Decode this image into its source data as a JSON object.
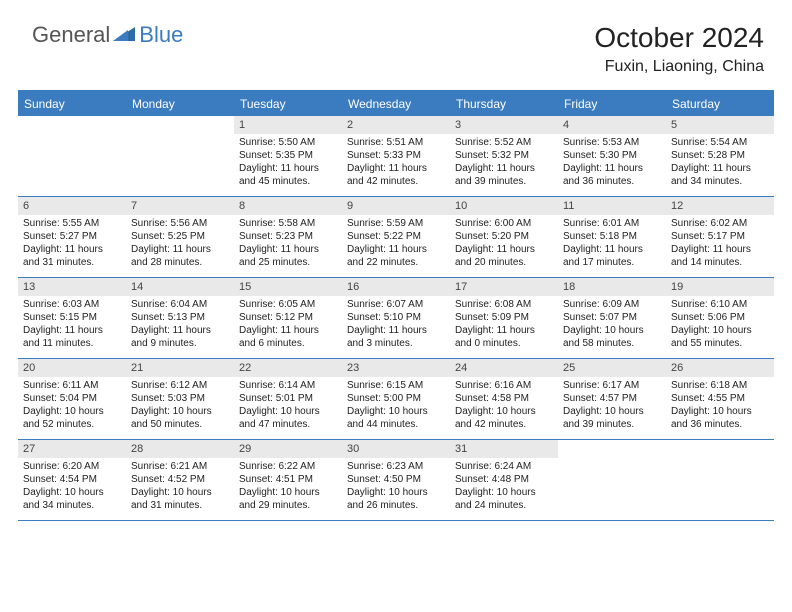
{
  "logo": {
    "text1": "General",
    "text2": "Blue"
  },
  "title": "October 2024",
  "location": "Fuxin, Liaoning, China",
  "colors": {
    "header_bg": "#3b7bbf",
    "daynum_bg": "#e9e9e9",
    "page_bg": "#ffffff",
    "text": "#222222",
    "logo_gray": "#555555",
    "logo_blue": "#3b7bbf"
  },
  "day_headers": [
    "Sunday",
    "Monday",
    "Tuesday",
    "Wednesday",
    "Thursday",
    "Friday",
    "Saturday"
  ],
  "weeks": [
    [
      {
        "num": "",
        "sunrise": "",
        "sunset": "",
        "day1": "",
        "day2": ""
      },
      {
        "num": "",
        "sunrise": "",
        "sunset": "",
        "day1": "",
        "day2": ""
      },
      {
        "num": "1",
        "sunrise": "Sunrise: 5:50 AM",
        "sunset": "Sunset: 5:35 PM",
        "day1": "Daylight: 11 hours",
        "day2": "and 45 minutes."
      },
      {
        "num": "2",
        "sunrise": "Sunrise: 5:51 AM",
        "sunset": "Sunset: 5:33 PM",
        "day1": "Daylight: 11 hours",
        "day2": "and 42 minutes."
      },
      {
        "num": "3",
        "sunrise": "Sunrise: 5:52 AM",
        "sunset": "Sunset: 5:32 PM",
        "day1": "Daylight: 11 hours",
        "day2": "and 39 minutes."
      },
      {
        "num": "4",
        "sunrise": "Sunrise: 5:53 AM",
        "sunset": "Sunset: 5:30 PM",
        "day1": "Daylight: 11 hours",
        "day2": "and 36 minutes."
      },
      {
        "num": "5",
        "sunrise": "Sunrise: 5:54 AM",
        "sunset": "Sunset: 5:28 PM",
        "day1": "Daylight: 11 hours",
        "day2": "and 34 minutes."
      }
    ],
    [
      {
        "num": "6",
        "sunrise": "Sunrise: 5:55 AM",
        "sunset": "Sunset: 5:27 PM",
        "day1": "Daylight: 11 hours",
        "day2": "and 31 minutes."
      },
      {
        "num": "7",
        "sunrise": "Sunrise: 5:56 AM",
        "sunset": "Sunset: 5:25 PM",
        "day1": "Daylight: 11 hours",
        "day2": "and 28 minutes."
      },
      {
        "num": "8",
        "sunrise": "Sunrise: 5:58 AM",
        "sunset": "Sunset: 5:23 PM",
        "day1": "Daylight: 11 hours",
        "day2": "and 25 minutes."
      },
      {
        "num": "9",
        "sunrise": "Sunrise: 5:59 AM",
        "sunset": "Sunset: 5:22 PM",
        "day1": "Daylight: 11 hours",
        "day2": "and 22 minutes."
      },
      {
        "num": "10",
        "sunrise": "Sunrise: 6:00 AM",
        "sunset": "Sunset: 5:20 PM",
        "day1": "Daylight: 11 hours",
        "day2": "and 20 minutes."
      },
      {
        "num": "11",
        "sunrise": "Sunrise: 6:01 AM",
        "sunset": "Sunset: 5:18 PM",
        "day1": "Daylight: 11 hours",
        "day2": "and 17 minutes."
      },
      {
        "num": "12",
        "sunrise": "Sunrise: 6:02 AM",
        "sunset": "Sunset: 5:17 PM",
        "day1": "Daylight: 11 hours",
        "day2": "and 14 minutes."
      }
    ],
    [
      {
        "num": "13",
        "sunrise": "Sunrise: 6:03 AM",
        "sunset": "Sunset: 5:15 PM",
        "day1": "Daylight: 11 hours",
        "day2": "and 11 minutes."
      },
      {
        "num": "14",
        "sunrise": "Sunrise: 6:04 AM",
        "sunset": "Sunset: 5:13 PM",
        "day1": "Daylight: 11 hours",
        "day2": "and 9 minutes."
      },
      {
        "num": "15",
        "sunrise": "Sunrise: 6:05 AM",
        "sunset": "Sunset: 5:12 PM",
        "day1": "Daylight: 11 hours",
        "day2": "and 6 minutes."
      },
      {
        "num": "16",
        "sunrise": "Sunrise: 6:07 AM",
        "sunset": "Sunset: 5:10 PM",
        "day1": "Daylight: 11 hours",
        "day2": "and 3 minutes."
      },
      {
        "num": "17",
        "sunrise": "Sunrise: 6:08 AM",
        "sunset": "Sunset: 5:09 PM",
        "day1": "Daylight: 11 hours",
        "day2": "and 0 minutes."
      },
      {
        "num": "18",
        "sunrise": "Sunrise: 6:09 AM",
        "sunset": "Sunset: 5:07 PM",
        "day1": "Daylight: 10 hours",
        "day2": "and 58 minutes."
      },
      {
        "num": "19",
        "sunrise": "Sunrise: 6:10 AM",
        "sunset": "Sunset: 5:06 PM",
        "day1": "Daylight: 10 hours",
        "day2": "and 55 minutes."
      }
    ],
    [
      {
        "num": "20",
        "sunrise": "Sunrise: 6:11 AM",
        "sunset": "Sunset: 5:04 PM",
        "day1": "Daylight: 10 hours",
        "day2": "and 52 minutes."
      },
      {
        "num": "21",
        "sunrise": "Sunrise: 6:12 AM",
        "sunset": "Sunset: 5:03 PM",
        "day1": "Daylight: 10 hours",
        "day2": "and 50 minutes."
      },
      {
        "num": "22",
        "sunrise": "Sunrise: 6:14 AM",
        "sunset": "Sunset: 5:01 PM",
        "day1": "Daylight: 10 hours",
        "day2": "and 47 minutes."
      },
      {
        "num": "23",
        "sunrise": "Sunrise: 6:15 AM",
        "sunset": "Sunset: 5:00 PM",
        "day1": "Daylight: 10 hours",
        "day2": "and 44 minutes."
      },
      {
        "num": "24",
        "sunrise": "Sunrise: 6:16 AM",
        "sunset": "Sunset: 4:58 PM",
        "day1": "Daylight: 10 hours",
        "day2": "and 42 minutes."
      },
      {
        "num": "25",
        "sunrise": "Sunrise: 6:17 AM",
        "sunset": "Sunset: 4:57 PM",
        "day1": "Daylight: 10 hours",
        "day2": "and 39 minutes."
      },
      {
        "num": "26",
        "sunrise": "Sunrise: 6:18 AM",
        "sunset": "Sunset: 4:55 PM",
        "day1": "Daylight: 10 hours",
        "day2": "and 36 minutes."
      }
    ],
    [
      {
        "num": "27",
        "sunrise": "Sunrise: 6:20 AM",
        "sunset": "Sunset: 4:54 PM",
        "day1": "Daylight: 10 hours",
        "day2": "and 34 minutes."
      },
      {
        "num": "28",
        "sunrise": "Sunrise: 6:21 AM",
        "sunset": "Sunset: 4:52 PM",
        "day1": "Daylight: 10 hours",
        "day2": "and 31 minutes."
      },
      {
        "num": "29",
        "sunrise": "Sunrise: 6:22 AM",
        "sunset": "Sunset: 4:51 PM",
        "day1": "Daylight: 10 hours",
        "day2": "and 29 minutes."
      },
      {
        "num": "30",
        "sunrise": "Sunrise: 6:23 AM",
        "sunset": "Sunset: 4:50 PM",
        "day1": "Daylight: 10 hours",
        "day2": "and 26 minutes."
      },
      {
        "num": "31",
        "sunrise": "Sunrise: 6:24 AM",
        "sunset": "Sunset: 4:48 PM",
        "day1": "Daylight: 10 hours",
        "day2": "and 24 minutes."
      },
      {
        "num": "",
        "sunrise": "",
        "sunset": "",
        "day1": "",
        "day2": ""
      },
      {
        "num": "",
        "sunrise": "",
        "sunset": "",
        "day1": "",
        "day2": ""
      }
    ]
  ]
}
